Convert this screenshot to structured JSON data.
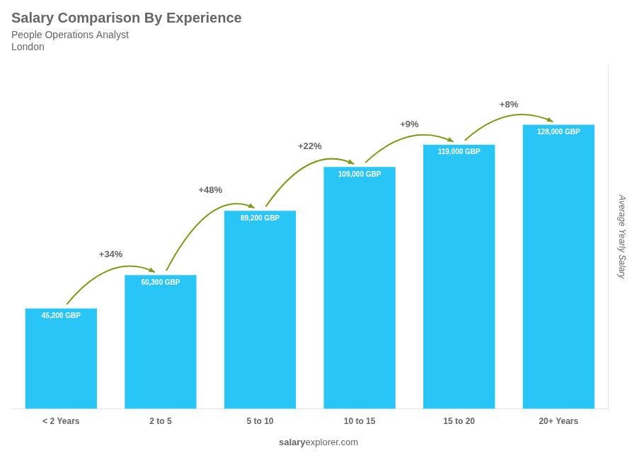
{
  "chart_data": {
    "type": "bar",
    "title": "Salary Comparison By Experience",
    "subtitle": [
      "People Operations Analyst",
      "London"
    ],
    "ylabel": "Average Yearly Salary",
    "categories": [
      "< 2 Years",
      "2 to 5",
      "5 to 10",
      "10 to 15",
      "15 to 20",
      "20+ Years"
    ],
    "values": [
      45200,
      60300,
      89200,
      109000,
      119000,
      128000
    ],
    "value_labels": [
      "45,200 GBP",
      "60,300 GBP",
      "89,200 GBP",
      "109,000 GBP",
      "119,000 GBP",
      "128,000 GBP"
    ],
    "data_labels": true,
    "color": "#29C5F6",
    "ylim": [
      0,
      155000
    ],
    "grid": false,
    "tick_labels": "x",
    "annotations": [
      "+34%",
      "+48%",
      "+22%",
      "+9%",
      "+8%"
    ],
    "footer": [
      "salary",
      "explorer.com"
    ]
  }
}
